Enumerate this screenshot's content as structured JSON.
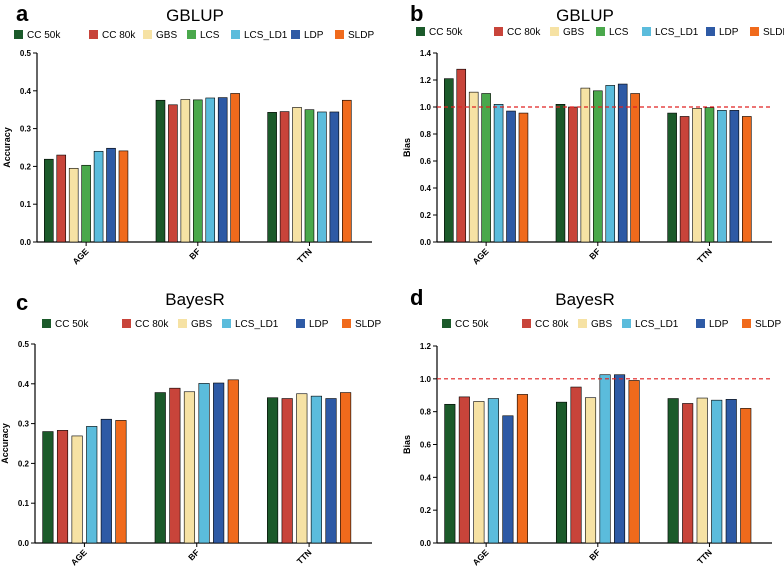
{
  "colors": {
    "CC 50k": "#1b5a2a",
    "CC 80k": "#c8443a",
    "GBS": "#f6e2a4",
    "LCS": "#4aa84c",
    "LCS_LD1": "#5bbcdc",
    "LDP": "#2e5aa5",
    "SLDP": "#f06a1c",
    "reference_line": "#e02020"
  },
  "chart_data": [
    {
      "panel": "a",
      "type": "bar",
      "title": "GBLUP",
      "xlabel": "",
      "ylabel": "Accuracy",
      "ylim": [
        0,
        0.5
      ],
      "yticks": [
        "0.0",
        "0.1",
        "0.2",
        "0.3",
        "0.4",
        "0.5"
      ],
      "categories": [
        "AGE",
        "BF",
        "TTN"
      ],
      "legend": [
        "CC 50k",
        "CC 80k",
        "GBS",
        "LCS",
        "LCS_LD1",
        "LDP",
        "SLDP"
      ],
      "series": [
        {
          "name": "CC 50k",
          "values": [
            0.219,
            0.375,
            0.343
          ]
        },
        {
          "name": "CC 80k",
          "values": [
            0.23,
            0.363,
            0.345
          ]
        },
        {
          "name": "GBS",
          "values": [
            0.195,
            0.377,
            0.356
          ]
        },
        {
          "name": "LCS",
          "values": [
            0.203,
            0.376,
            0.35
          ]
        },
        {
          "name": "LCS_LD1",
          "values": [
            0.24,
            0.381,
            0.344
          ]
        },
        {
          "name": "LDP",
          "values": [
            0.248,
            0.382,
            0.344
          ]
        },
        {
          "name": "SLDP",
          "values": [
            0.241,
            0.393,
            0.375
          ]
        }
      ]
    },
    {
      "panel": "b",
      "type": "bar",
      "title": "GBLUP",
      "xlabel": "",
      "ylabel": "Bias",
      "ylim": [
        0,
        1.4
      ],
      "yticks": [
        "0.0",
        "0.2",
        "0.4",
        "0.6",
        "0.8",
        "1.0",
        "1.2",
        "1.4"
      ],
      "reference_line": 1.0,
      "categories": [
        "AGE",
        "BF",
        "TTN"
      ],
      "legend": [
        "CC 50k",
        "CC 80k",
        "GBS",
        "LCS",
        "LCS_LD1",
        "LDP",
        "SLDP"
      ],
      "series": [
        {
          "name": "CC 50k",
          "values": [
            1.21,
            1.02,
            0.955
          ]
        },
        {
          "name": "CC 80k",
          "values": [
            1.28,
            1.0,
            0.93
          ]
        },
        {
          "name": "GBS",
          "values": [
            1.11,
            1.14,
            0.99
          ]
        },
        {
          "name": "LCS",
          "values": [
            1.1,
            1.12,
            0.995
          ]
        },
        {
          "name": "LCS_LD1",
          "values": [
            1.02,
            1.16,
            0.975
          ]
        },
        {
          "name": "LDP",
          "values": [
            0.97,
            1.17,
            0.975
          ]
        },
        {
          "name": "SLDP",
          "values": [
            0.955,
            1.1,
            0.93
          ]
        }
      ]
    },
    {
      "panel": "c",
      "type": "bar",
      "title": "BayesR",
      "xlabel": "",
      "ylabel": "Accuracy",
      "ylim": [
        0,
        0.5
      ],
      "yticks": [
        "0.0",
        "0.1",
        "0.2",
        "0.3",
        "0.4",
        "0.5"
      ],
      "categories": [
        "AGE",
        "BF",
        "TTN"
      ],
      "legend": [
        "CC 50k",
        "CC 80k",
        "GBS",
        "LCS_LD1",
        "LDP",
        "SLDP"
      ],
      "series": [
        {
          "name": "CC 50k",
          "values": [
            0.28,
            0.378,
            0.365
          ]
        },
        {
          "name": "CC 80k",
          "values": [
            0.283,
            0.389,
            0.363
          ]
        },
        {
          "name": "GBS",
          "values": [
            0.269,
            0.38,
            0.375
          ]
        },
        {
          "name": "LCS_LD1",
          "values": [
            0.293,
            0.401,
            0.369
          ]
        },
        {
          "name": "LDP",
          "values": [
            0.311,
            0.402,
            0.363
          ]
        },
        {
          "name": "SLDP",
          "values": [
            0.308,
            0.41,
            0.378
          ]
        }
      ]
    },
    {
      "panel": "d",
      "type": "bar",
      "title": "BayesR",
      "xlabel": "",
      "ylabel": "Bias",
      "ylim": [
        0,
        1.2
      ],
      "yticks": [
        "0.0",
        "0.2",
        "0.4",
        "0.6",
        "0.8",
        "1.0",
        "1.2"
      ],
      "reference_line": 1.0,
      "categories": [
        "AGE",
        "BF",
        "TTN"
      ],
      "legend": [
        "CC 50k",
        "CC 80k",
        "GBS",
        "LCS_LD1",
        "LDP",
        "SLDP"
      ],
      "series": [
        {
          "name": "CC 50k",
          "values": [
            0.845,
            0.858,
            0.88
          ]
        },
        {
          "name": "CC 80k",
          "values": [
            0.89,
            0.95,
            0.85
          ]
        },
        {
          "name": "GBS",
          "values": [
            0.862,
            0.885,
            0.883
          ]
        },
        {
          "name": "LCS_LD1",
          "values": [
            0.88,
            1.025,
            0.87
          ]
        },
        {
          "name": "LDP",
          "values": [
            0.775,
            1.025,
            0.875
          ]
        },
        {
          "name": "SLDP",
          "values": [
            0.905,
            0.99,
            0.82
          ]
        }
      ]
    }
  ]
}
